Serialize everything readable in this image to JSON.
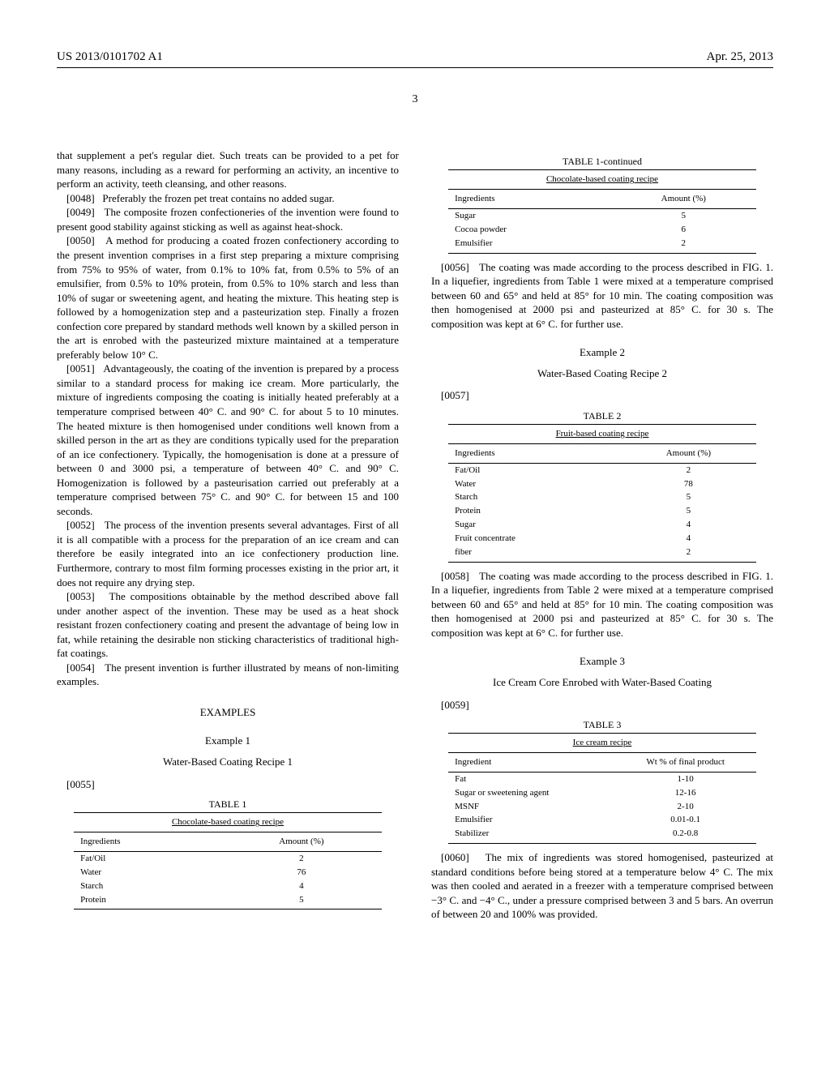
{
  "header": {
    "left": "US 2013/0101702 A1",
    "right": "Apr. 25, 2013"
  },
  "page_number": "3",
  "left_col": {
    "p47_cont": "that supplement a pet's regular diet. Such treats can be provided to a pet for many reasons, including as a reward for performing an activity, an incentive to perform an activity, teeth cleansing, and other reasons.",
    "p48": "[0048]   Preferably the frozen pet treat contains no added sugar.",
    "p49": "[0049]   The composite frozen confectioneries of the invention were found to present good stability against sticking as well as against heat-shock.",
    "p50": "[0050]   A method for producing a coated frozen confectionery according to the present invention comprises in a first step preparing a mixture comprising from 75% to 95% of water, from 0.1% to 10% fat, from 0.5% to 5% of an emulsifier, from 0.5% to 10% protein, from 0.5% to 10% starch and less than 10% of sugar or sweetening agent, and heating the mixture. This heating step is followed by a homogenization step and a pasteurization step. Finally a frozen confection core prepared by standard methods well known by a skilled person in the art is enrobed with the pasteurized mixture maintained at a temperature preferably below 10° C.",
    "p51": "[0051]   Advantageously, the coating of the invention is prepared by a process similar to a standard process for making ice cream. More particularly, the mixture of ingredients composing the coating is initially heated preferably at a temperature comprised between 40° C. and 90° C. for about 5 to 10 minutes. The heated mixture is then homogenised under conditions well known from a skilled person in the art as they are conditions typically used for the preparation of an ice confectionery. Typically, the homogenisation is done at a pressure of between 0 and 3000 psi, a temperature of between 40° C. and 90° C. Homogenization is followed by a pasteurisation carried out preferably at a temperature comprised between 75° C. and 90° C. for between 15 and 100 seconds.",
    "p52": "[0052]   The process of the invention presents several advantages. First of all it is all compatible with a process for the preparation of an ice cream and can therefore be easily integrated into an ice confectionery production line. Furthermore, contrary to most film forming processes existing in the prior art, it does not require any drying step.",
    "p53": "[0053]   The compositions obtainable by the method described above fall under another aspect of the invention. These may be used as a heat shock resistant frozen confectionery coating and present the advantage of being low in fat, while retaining the desirable non sticking characteristics of traditional high-fat coatings.",
    "p54": "[0054]   The present invention is further illustrated by means of non-limiting examples.",
    "examples_heading": "EXAMPLES",
    "example1_title": "Example 1",
    "example1_subtitle": "Water-Based Coating Recipe 1",
    "p55": "[0055]",
    "table1": {
      "label": "TABLE 1",
      "caption": "Chocolate-based coating recipe",
      "col1": "Ingredients",
      "col2": "Amount (%)",
      "rows": [
        [
          "Fat/Oil",
          "2"
        ],
        [
          "Water",
          "76"
        ],
        [
          "Starch",
          "4"
        ],
        [
          "Protein",
          "5"
        ]
      ]
    }
  },
  "right_col": {
    "table1c": {
      "label": "TABLE 1-continued",
      "caption": "Chocolate-based coating recipe",
      "col1": "Ingredients",
      "col2": "Amount (%)",
      "rows": [
        [
          "Sugar",
          "5"
        ],
        [
          "Cocoa powder",
          "6"
        ],
        [
          "Emulsifier",
          "2"
        ]
      ]
    },
    "p56": "[0056]   The coating was made according to the process described in FIG. 1. In a liquefier, ingredients from Table 1 were mixed at a temperature comprised between 60 and 65° and held at 85° for 10 min. The coating composition was then homogenised at 2000 psi and pasteurized at 85° C. for 30 s. The composition was kept at 6° C. for further use.",
    "example2_title": "Example 2",
    "example2_subtitle": "Water-Based Coating Recipe 2",
    "p57": "[0057]",
    "table2": {
      "label": "TABLE 2",
      "caption": "Fruit-based coating recipe",
      "col1": "Ingredients",
      "col2": "Amount (%)",
      "rows": [
        [
          "Fat/Oil",
          "2"
        ],
        [
          "Water",
          "78"
        ],
        [
          "Starch",
          "5"
        ],
        [
          "Protein",
          "5"
        ],
        [
          "Sugar",
          "4"
        ],
        [
          "Fruit concentrate",
          "4"
        ],
        [
          "fiber",
          "2"
        ]
      ]
    },
    "p58": "[0058]   The coating was made according to the process described in FIG. 1. In a liquefier, ingredients from Table 2 were mixed at a temperature comprised between 60 and 65° and held at 85° for 10 min. The coating composition was then homogenised at 2000 psi and pasteurized at 85° C. for 30 s. The composition was kept at 6° C. for further use.",
    "example3_title": "Example 3",
    "example3_subtitle": "Ice Cream Core Enrobed with Water-Based Coating",
    "p59": "[0059]",
    "table3": {
      "label": "TABLE 3",
      "caption": "Ice cream recipe",
      "col1": "Ingredient",
      "col2": "Wt % of final product",
      "rows": [
        [
          "Fat",
          "1-10"
        ],
        [
          "Sugar or sweetening agent",
          "12-16"
        ],
        [
          "MSNF",
          "2-10"
        ],
        [
          "Emulsifier",
          "0.01-0.1"
        ],
        [
          "Stabilizer",
          "0.2-0.8"
        ]
      ]
    },
    "p60": "[0060]   The mix of ingredients was stored homogenised, pasteurized at standard conditions before being stored at a temperature below 4° C. The mix was then cooled and aerated in a freezer with a temperature comprised between −3° C. and −4° C., under a pressure comprised between 3 and 5 bars. An overrun of between 20 and 100% was provided."
  }
}
